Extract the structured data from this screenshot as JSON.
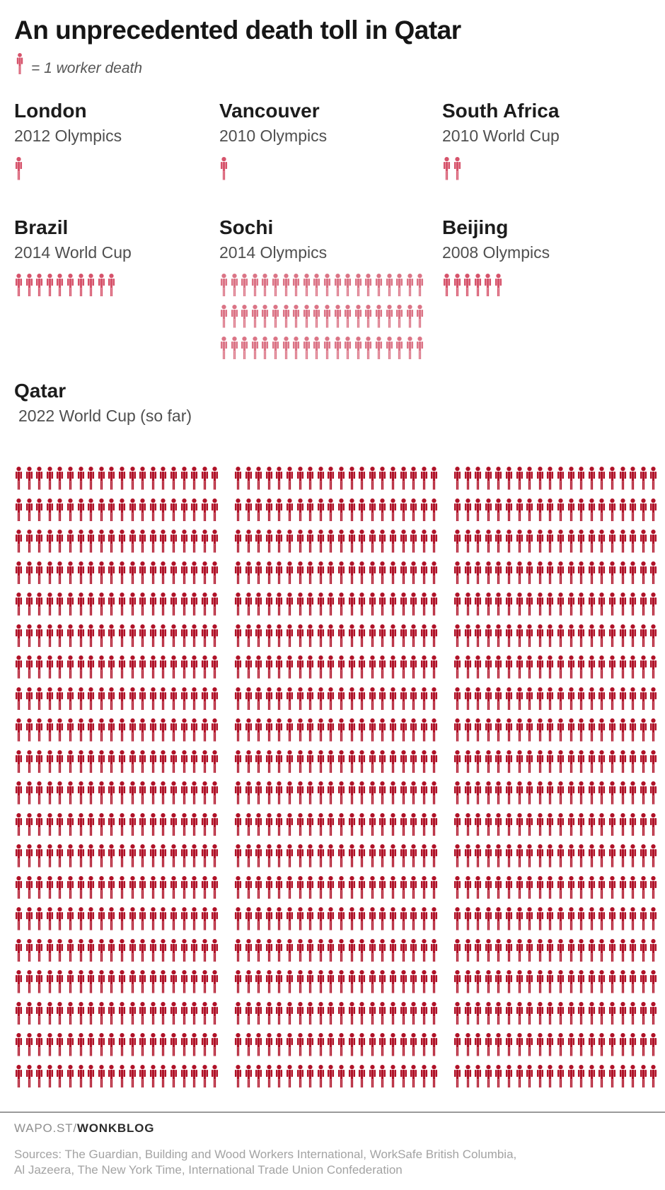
{
  "chart_data": {
    "type": "pictogram",
    "title": "An unprecedented death toll in Qatar",
    "legend": {
      "label": "= 1 worker death",
      "unit_value": 1,
      "color": "#d6536b"
    },
    "events": [
      {
        "name": "London",
        "event": "2012 Olympics",
        "deaths": 1,
        "color": "#d6536b",
        "per_row": 20
      },
      {
        "name": "Vancouver",
        "event": "2010 Olympics",
        "deaths": 1,
        "color": "#d6536b",
        "per_row": 20
      },
      {
        "name": "South Africa",
        "event": "2010 World Cup",
        "deaths": 2,
        "color": "#d6536b",
        "per_row": 20
      },
      {
        "name": "Brazil",
        "event": "2014 World Cup",
        "deaths": 10,
        "color": "#d6536b",
        "per_row": 20
      },
      {
        "name": "Sochi",
        "event": "2014 Olympics",
        "deaths": 60,
        "color": "#db7486",
        "per_row": 20
      },
      {
        "name": "Beijing",
        "event": "2008 Olympics",
        "deaths": 6,
        "color": "#d6536b",
        "per_row": 20
      },
      {
        "name": "Qatar",
        "event": "2022 World Cup (so far)",
        "deaths": 1200,
        "color": "#b01228",
        "per_row": 20,
        "columns": 3,
        "rows_per_column": 20,
        "rows_per_group": 5
      }
    ]
  },
  "footer": {
    "site": "WAPO.ST/",
    "brand": "WONKBLOG",
    "sources_line1": "Sources: The Guardian, Building and Wood Workers International, WorkSafe British Columbia,",
    "sources_line2": "Al Jazeera, The New York Time, International Trade Union Confederation"
  }
}
